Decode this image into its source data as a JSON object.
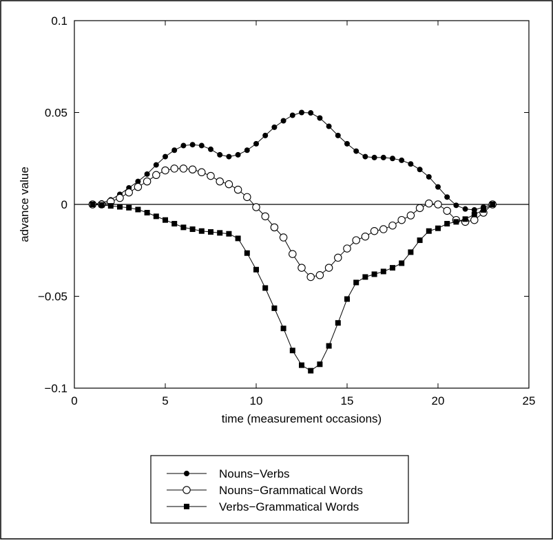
{
  "chart_data": {
    "type": "line",
    "xlabel": "time (measurement occasions)",
    "ylabel": "advance value",
    "xlim": [
      0,
      25
    ],
    "ylim": [
      -0.1,
      0.1
    ],
    "xticks": [
      0,
      5,
      10,
      15,
      20,
      25
    ],
    "xtick_labels": [
      "0",
      "5",
      "10",
      "15",
      "20",
      "25"
    ],
    "yticks": [
      -0.1,
      -0.05,
      0,
      0.05,
      0.1
    ],
    "ytick_labels": [
      "−0.1",
      "−0.05",
      "0",
      "0.05",
      "0.1"
    ],
    "grid": false,
    "zero_line": true,
    "legend_position": "below",
    "x": [
      1,
      1.5,
      2,
      2.5,
      3,
      3.5,
      4,
      4.5,
      5,
      5.5,
      6,
      6.5,
      7,
      7.5,
      8,
      8.5,
      9,
      9.5,
      10,
      10.5,
      11,
      11.5,
      12,
      12.5,
      13,
      13.5,
      14,
      14.5,
      15,
      15.5,
      16,
      16.5,
      17,
      17.5,
      18,
      18.5,
      19,
      19.5,
      20,
      20.5,
      21,
      21.5,
      22,
      22.5,
      23
    ],
    "series": [
      {
        "name": "Nouns−Verbs",
        "marker": "filled-circle",
        "values": [
          0,
          0.0008,
          0.0025,
          0.0055,
          0.009,
          0.0125,
          0.0165,
          0.0215,
          0.026,
          0.0295,
          0.032,
          0.0325,
          0.032,
          0.03,
          0.027,
          0.026,
          0.027,
          0.0295,
          0.033,
          0.0375,
          0.042,
          0.0455,
          0.0485,
          0.05,
          0.0498,
          0.047,
          0.0425,
          0.0375,
          0.033,
          0.029,
          0.026,
          0.0255,
          0.0255,
          0.025,
          0.024,
          0.022,
          0.019,
          0.015,
          0.0095,
          0.004,
          -0.0005,
          -0.0025,
          -0.003,
          -0.0015,
          0
        ]
      },
      {
        "name": "Nouns−Grammatical Words",
        "marker": "open-circle",
        "values": [
          0,
          0,
          0.0015,
          0.0035,
          0.0065,
          0.0095,
          0.0125,
          0.016,
          0.0185,
          0.0195,
          0.0195,
          0.019,
          0.0175,
          0.0155,
          0.0125,
          0.011,
          0.008,
          0.004,
          -0.0015,
          -0.0065,
          -0.0125,
          -0.018,
          -0.027,
          -0.0345,
          -0.0395,
          -0.0385,
          -0.0345,
          -0.029,
          -0.024,
          -0.0195,
          -0.0175,
          -0.0145,
          -0.0135,
          -0.0115,
          -0.0085,
          -0.006,
          -0.002,
          0.0005,
          0,
          -0.0035,
          -0.0085,
          -0.0095,
          -0.0085,
          -0.0045,
          0
        ]
      },
      {
        "name": "Verbs−Grammatical Words",
        "marker": "filled-square",
        "values": [
          0,
          -0.0003,
          -0.0008,
          -0.0013,
          -0.0018,
          -0.0028,
          -0.0045,
          -0.0065,
          -0.0085,
          -0.0105,
          -0.0125,
          -0.0135,
          -0.0145,
          -0.015,
          -0.0155,
          -0.016,
          -0.0185,
          -0.0265,
          -0.0355,
          -0.0455,
          -0.0565,
          -0.0675,
          -0.0795,
          -0.0875,
          -0.0905,
          -0.087,
          -0.077,
          -0.0645,
          -0.0515,
          -0.0425,
          -0.0395,
          -0.038,
          -0.0365,
          -0.0345,
          -0.032,
          -0.026,
          -0.0195,
          -0.0145,
          -0.013,
          -0.0105,
          -0.0095,
          -0.008,
          -0.0055,
          -0.003,
          0
        ]
      }
    ]
  }
}
